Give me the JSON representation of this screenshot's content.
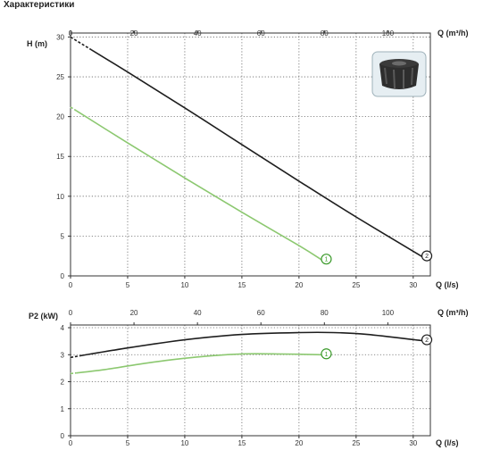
{
  "page": {
    "title": "Характеристики"
  },
  "colors": {
    "curve1": "#8cc870",
    "curve2": "#1e1e1e",
    "marker1": "#3a9a2a",
    "marker2": "#1e1e1e"
  },
  "icon": "pump-impeller-photo",
  "chart_data": [
    {
      "id": "head",
      "type": "line",
      "ylabel": "H (m)",
      "xlabel_top": "Q (m³/h)",
      "xlabel_bottom": "Q (l/s)",
      "xlim": [
        0,
        31.5
      ],
      "ylim": [
        0,
        30.5
      ],
      "x_top_ticks": [
        0,
        20,
        40,
        60,
        80,
        100
      ],
      "x_bottom_ticks": [
        0,
        5,
        10,
        15,
        20,
        25,
        30
      ],
      "y_ticks": [
        0,
        5,
        10,
        15,
        20,
        25,
        30
      ],
      "grid": true,
      "series": [
        {
          "name": "1",
          "x": [
            0,
            5,
            10,
            15,
            20,
            22
          ],
          "y": [
            21.2,
            16.7,
            12.3,
            8.0,
            3.8,
            2.0
          ],
          "dashed_start": [
            0,
            0.5
          ]
        },
        {
          "name": "2",
          "x": [
            0,
            5,
            10,
            15,
            20,
            25,
            30.8
          ],
          "y": [
            30.0,
            25.6,
            21.1,
            16.5,
            11.9,
            7.4,
            2.4
          ],
          "dashed_start": [
            0,
            1.8
          ]
        }
      ]
    },
    {
      "id": "power",
      "type": "line",
      "ylabel": "P2 (kW)",
      "xlabel_top": "Q (m³/h)",
      "xlabel_bottom": "Q (l/s)",
      "xlim": [
        0,
        31.5
      ],
      "ylim": [
        0,
        4.1
      ],
      "x_top_ticks": [
        0,
        20,
        40,
        60,
        80,
        100
      ],
      "x_bottom_ticks": [
        0,
        5,
        10,
        15,
        20,
        25,
        30
      ],
      "y_ticks": [
        0,
        1,
        2,
        3,
        4
      ],
      "grid": true,
      "series": [
        {
          "name": "1",
          "x": [
            0,
            3,
            6,
            9,
            12,
            15,
            18,
            22
          ],
          "y": [
            2.3,
            2.45,
            2.65,
            2.82,
            2.95,
            3.03,
            3.03,
            3.0
          ],
          "dashed_start": [
            0,
            0.5
          ]
        },
        {
          "name": "2",
          "x": [
            0,
            5,
            10,
            15,
            20,
            23,
            26,
            30.8
          ],
          "y": [
            2.9,
            3.25,
            3.55,
            3.75,
            3.82,
            3.82,
            3.75,
            3.52
          ],
          "dashed_start": [
            0,
            0.8
          ]
        }
      ]
    }
  ]
}
